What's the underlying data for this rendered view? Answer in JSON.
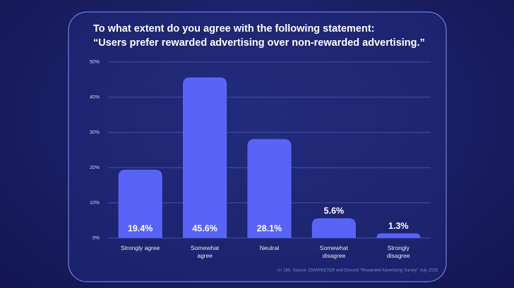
{
  "chart_data": {
    "type": "bar",
    "title": "To what extent do you agree with the following statement:",
    "subtitle": "“Users prefer rewarded advertising over non-rewarded advertising.”",
    "categories": [
      "Strongly agree",
      "Somewhat agree",
      "Neutral",
      "Somewhat disagree",
      "Strongly disagree"
    ],
    "values": [
      19.4,
      45.6,
      28.1,
      5.6,
      1.3
    ],
    "value_labels": [
      "19.4%",
      "45.6%",
      "28.1%",
      "5.6%",
      "1.3%"
    ],
    "color": "#5a63f7",
    "ylim": [
      0,
      50
    ],
    "yticks": [
      {
        "value": 0,
        "label": "0%"
      },
      {
        "value": 10,
        "label": "10%"
      },
      {
        "value": 20,
        "label": "20%"
      },
      {
        "value": 30,
        "label": "30%"
      },
      {
        "value": 40,
        "label": "40%"
      },
      {
        "value": 50,
        "label": "50%"
      }
    ],
    "grid": true,
    "source": "n= 160. Source: EMARKETER and Discord \"Rewarded Advertising Survey\" July 2025"
  }
}
